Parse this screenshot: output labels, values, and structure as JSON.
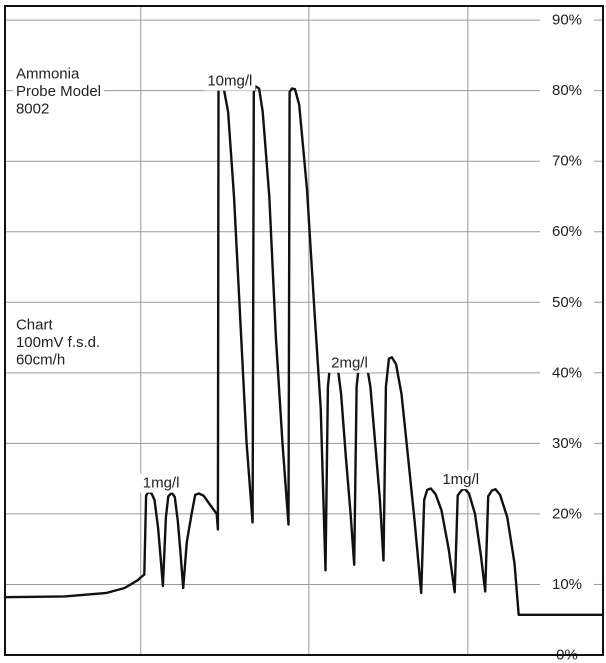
{
  "chart_data": {
    "type": "line",
    "title": "",
    "xlabel": "",
    "ylabel": "",
    "ylim": [
      0,
      92
    ],
    "xlim": [
      0,
      100
    ],
    "grid": true,
    "y_ticks": [
      {
        "value": 0,
        "label": "0%"
      },
      {
        "value": 10,
        "label": "10%"
      },
      {
        "value": 20,
        "label": "20%"
      },
      {
        "value": 30,
        "label": "30%"
      },
      {
        "value": 40,
        "label": "40%"
      },
      {
        "value": 50,
        "label": "50%"
      },
      {
        "value": 60,
        "label": "60%"
      },
      {
        "value": 70,
        "label": "70%"
      },
      {
        "value": 80,
        "label": "80%"
      },
      {
        "value": 90,
        "label": "90%"
      }
    ],
    "x_gridlines": [
      22.7,
      50.8,
      77.4
    ],
    "annotations": [
      {
        "lines": [
          "Ammonia",
          "Probe Model",
          "8002"
        ],
        "x": 1,
        "y": 83.2
      },
      {
        "lines": [
          "Chart",
          "100mV f.s.d.",
          "60cm/h"
        ],
        "x": 1,
        "y": 47.6
      },
      {
        "lines": [
          "10mg/l"
        ],
        "x": 33,
        "y": 82.2
      },
      {
        "lines": [
          "2mg/l"
        ],
        "x": 53.7,
        "y": 42.2
      },
      {
        "lines": [
          "1mg/l"
        ],
        "x": 22.2,
        "y": 25.2
      },
      {
        "lines": [
          "1mg/l"
        ],
        "x": 72.3,
        "y": 25.7
      }
    ],
    "series": [
      {
        "points": [
          [
            0,
            8.2
          ],
          [
            10,
            8.3
          ],
          [
            17,
            8.8
          ],
          [
            20,
            9.5
          ],
          [
            22.2,
            10.6
          ],
          [
            22.7,
            11
          ],
          [
            23.3,
            11.4
          ],
          [
            23.6,
            22.6
          ],
          [
            24,
            23.1
          ],
          [
            24.5,
            22.9
          ],
          [
            25,
            22
          ],
          [
            25.6,
            18
          ],
          [
            26,
            14
          ],
          [
            26.4,
            9.8
          ],
          [
            26.9,
            19.5
          ],
          [
            27.3,
            22.5
          ],
          [
            27.9,
            23
          ],
          [
            28.4,
            22.4
          ],
          [
            28.9,
            19
          ],
          [
            29.3,
            15
          ],
          [
            29.8,
            9.5
          ],
          [
            30.4,
            16
          ],
          [
            31.2,
            20
          ],
          [
            31.8,
            22.7
          ],
          [
            32.4,
            22.9
          ],
          [
            33.2,
            22.6
          ],
          [
            34.2,
            21.4
          ],
          [
            35.4,
            20
          ],
          [
            35.6,
            17.8
          ],
          [
            35.7,
            80
          ],
          [
            36,
            80.8
          ],
          [
            36.6,
            80.2
          ],
          [
            37.3,
            77
          ],
          [
            38.3,
            65
          ],
          [
            39.5,
            45
          ],
          [
            40.4,
            30
          ],
          [
            41.4,
            18.8
          ],
          [
            41.6,
            79.8
          ],
          [
            41.9,
            80.6
          ],
          [
            42.5,
            80.3
          ],
          [
            43.1,
            77
          ],
          [
            44.2,
            65
          ],
          [
            45.3,
            45
          ],
          [
            46.4,
            30
          ],
          [
            47.4,
            18.5
          ],
          [
            47.6,
            79.8
          ],
          [
            48,
            80.3
          ],
          [
            48.5,
            80.2
          ],
          [
            49.2,
            78
          ],
          [
            50.5,
            66
          ],
          [
            51.8,
            48
          ],
          [
            52.8,
            35
          ],
          [
            53.6,
            12
          ],
          [
            54,
            38
          ],
          [
            54.5,
            42.3
          ],
          [
            55,
            42.3
          ],
          [
            55.6,
            41
          ],
          [
            56.2,
            37
          ],
          [
            57,
            28
          ],
          [
            57.8,
            20
          ],
          [
            58.4,
            12.8
          ],
          [
            58.8,
            38
          ],
          [
            59.3,
            42
          ],
          [
            59.8,
            42.2
          ],
          [
            60.4,
            41.6
          ],
          [
            61.1,
            38
          ],
          [
            61.9,
            30
          ],
          [
            62.7,
            22
          ],
          [
            63.3,
            13.4
          ],
          [
            63.7,
            38
          ],
          [
            64.2,
            42
          ],
          [
            64.7,
            42.2
          ],
          [
            65.4,
            41.2
          ],
          [
            66.3,
            37
          ],
          [
            67.4,
            28
          ],
          [
            68.5,
            19
          ],
          [
            69.6,
            8.8
          ],
          [
            70.1,
            22
          ],
          [
            70.6,
            23.4
          ],
          [
            71.2,
            23.6
          ],
          [
            72,
            22.8
          ],
          [
            73,
            20.5
          ],
          [
            74.2,
            15
          ],
          [
            75.2,
            8.9
          ],
          [
            75.7,
            22.6
          ],
          [
            76.3,
            23.3
          ],
          [
            76.8,
            23.6
          ],
          [
            77.6,
            22.9
          ],
          [
            78.6,
            20
          ],
          [
            79.6,
            14
          ],
          [
            80.3,
            9
          ],
          [
            80.8,
            22.5
          ],
          [
            81.4,
            23.3
          ],
          [
            82,
            23.5
          ],
          [
            82.8,
            22.7
          ],
          [
            84,
            19.5
          ],
          [
            85.2,
            13
          ],
          [
            85.9,
            5.7
          ],
          [
            88,
            5.7
          ],
          [
            100,
            5.7
          ]
        ]
      }
    ]
  }
}
